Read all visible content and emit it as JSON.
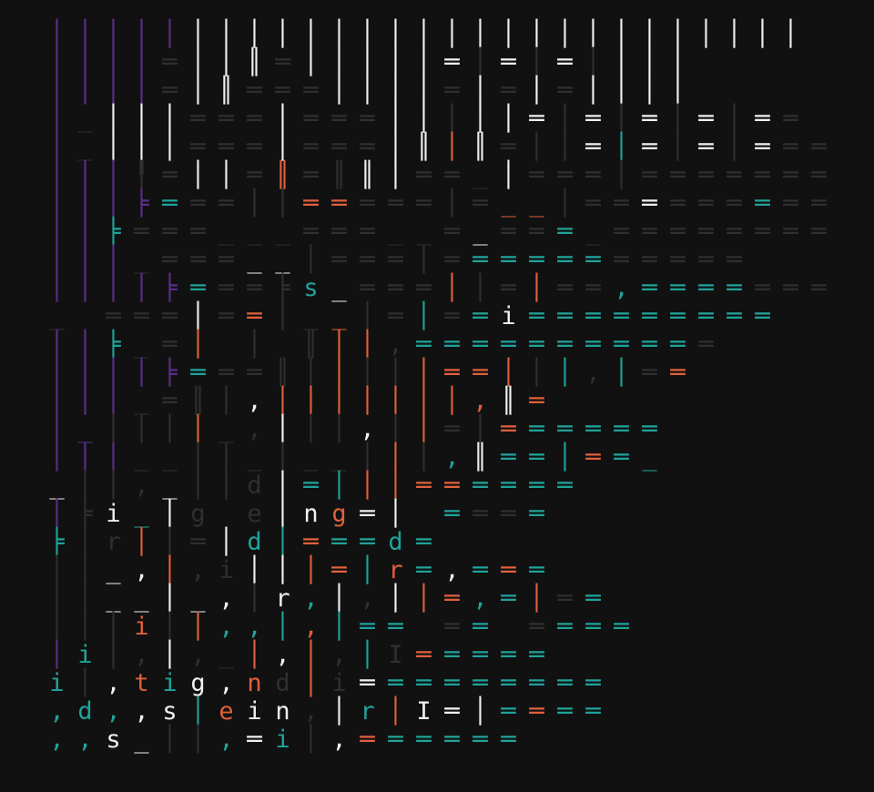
{
  "palette": {
    "background": "#111111",
    "k": "#2f2f2f",
    "w": "#f0f0f0",
    "p": "#5c2d8a",
    "t": "#1fa39a",
    "o": "#e0603c"
  },
  "rows": [
    {
      "chars": "│││││││││││││││││││││││││││",
      "colors": "pppppwwwwwwwwwwwwwwwwwwwwww"
    },
    {
      "chars": "││││═││║═│││││═│═│═││││",
      "colors": "ppppkwwwkwwwwwwkwkwkwwww"
    },
    {
      "chars": "││││═│║═══││││═│═│═││││",
      "colors": "ppppkwwkkkwwwwkwkwkwwwww"
    },
    {
      "chars": "│_│││═══│═══│││││═│═│═│═│══",
      "colors": "pkwwwkkkwkkkwwkwwwkwkwkwkwkkk"
    },
    {
      "chars": "│_│││═══│═══│║│║═││═│═│═│═══",
      "colors": "pkwwwkkkwkkkwwowkkkwtwkwkwkkk"
    },
    {
      "chars": "│││╿═││═║═║║│══_│═══│═══════",
      "colors": "pppkkwwkokkwwkkkwkkkkkkkkkkkk"
    },
    {
      "chars": "│││╞═══││═════│═__│═════════",
      "colors": "pppptkkkkookkkkkookkkwkkktkkkk"
    },
    {
      "chars": "││╞═══___═══__═_═══_════════",
      "colors": "pptkkkkkkkkkkkkwkktkkkkkkkkkkk"
    },
    {
      "chars": "│││_═══__│═══│═══════════",
      "colors": "pppkkkkwwkkkkkktttttkkkkkkk"
    },
    {
      "chars": "││││╞═══╞s_═══││═│══,═══════",
      "colors": "ppppptkkktwkkkokkokktttttkkkk"
    },
    {
      "chars": "_ ═══│══│__│═│══i═════════",
      "colors": "kkkkkwkokkokktktwttttttttttt"
    },
    {
      "chars": "││╞_═│ │ ║││,═══════════",
      "colors": "pptkkokkkkooktttttttttt"
    },
    {
      "chars": "││││╞═══║│││││══│││,│══",
      "colors": "ppppptkkkkokkooooktktkooottt"
    },
    {
      "chars": "│││_═║│,│││││││,║═",
      "colors": "pppkkkkwoooooooowokoto"
    },
    {
      "chars": "│_││││_,│││,││═│══════",
      "colors": "ppkkkokkwkkwkokkottttttt"
    },
    {
      "chars": "│││__││_│__│││,║══│══_",
      "colors": "pppkkkkkkkkkoktwtttottk"
    },
    {
      "chars": "_││,_││d│═│││══════",
      "colors": "wkkkwkkkwttoooottttttt"
    },
    {
      "chars": "│╞i_│g e│ng═│ ════",
      "colors": "pkwtwkwkwwowwttkkttttt"
    },
    {
      "chars": "╞│r││═│d│═══d═",
      "colors": "tkkokkwttottttwt"
    },
    {
      "chars": "││_,│,i│││═│r═,═══",
      "colors": "kkwwokkwwoototwtottt"
    },
    {
      "chars": "││__│_,│r,│,││═,═│══",
      "colors": "kkwwwwwkwtwkwoottokttt"
    },
    {
      "chars": "│││i││,,│,│══ ══ ════",
      "colors": "kkkokotttotttkkttkttttt"
    },
    {
      "chars": "│i│,│,_│,│,│I═════",
      "colors": "ptkkwkkowoktkotttttt"
    },
    {
      "chars": "i│,tig,nd│i═════════",
      "colors": "tkwotwwodokwtttttttt"
    },
    {
      "chars": ",d,,s│ein,│r│I═│════",
      "colors": "tttwwtoww wtowwwtottttt"
    },
    {
      "chars": ",,s_││,═i│,══════",
      "colors": "ttwwkktwtkwotttttt"
    }
  ]
}
